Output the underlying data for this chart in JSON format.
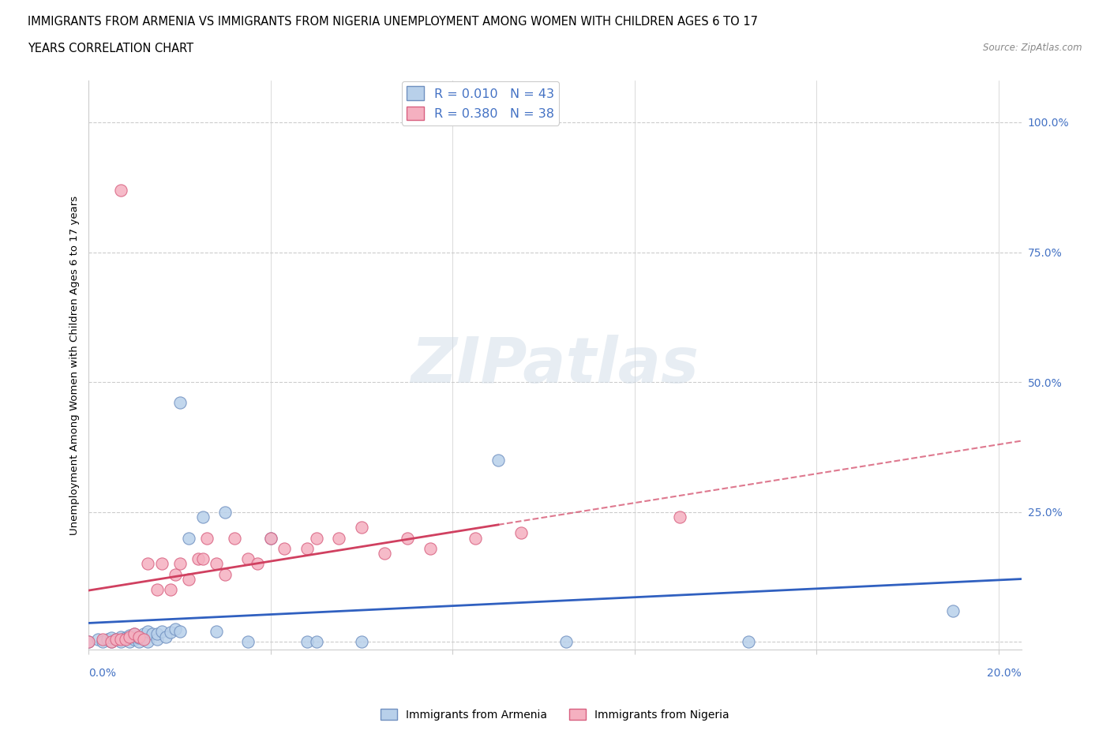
{
  "title_line1": "IMMIGRANTS FROM ARMENIA VS IMMIGRANTS FROM NIGERIA UNEMPLOYMENT AMONG WOMEN WITH CHILDREN AGES 6 TO 17",
  "title_line2": "YEARS CORRELATION CHART",
  "source": "Source: ZipAtlas.com",
  "ylabel": "Unemployment Among Women with Children Ages 6 to 17 years",
  "xlim": [
    0.0,
    0.205
  ],
  "ylim_min": -0.015,
  "ylim_max": 1.08,
  "yticks": [
    0.0,
    0.25,
    0.5,
    0.75,
    1.0
  ],
  "ytick_labels": [
    "",
    "25.0%",
    "50.0%",
    "75.0%",
    "100.0%"
  ],
  "legend_r_armenia": "R = 0.010",
  "legend_n_armenia": "N = 43",
  "legend_r_nigeria": "R = 0.380",
  "legend_n_nigeria": "N = 38",
  "armenia_color": "#b8d0ea",
  "nigeria_color": "#f5b0c0",
  "armenia_edge": "#7090c0",
  "nigeria_edge": "#d86080",
  "armenia_line_color": "#3060c0",
  "nigeria_line_color": "#d04060",
  "text_color_blue": "#4472c4",
  "grid_color": "#cccccc",
  "armenia_x": [
    0.0,
    0.002,
    0.003,
    0.004,
    0.005,
    0.005,
    0.006,
    0.007,
    0.007,
    0.008,
    0.009,
    0.009,
    0.01,
    0.01,
    0.01,
    0.011,
    0.011,
    0.012,
    0.012,
    0.013,
    0.013,
    0.014,
    0.015,
    0.015,
    0.016,
    0.017,
    0.018,
    0.019,
    0.02,
    0.02,
    0.022,
    0.025,
    0.028,
    0.03,
    0.035,
    0.04,
    0.048,
    0.05,
    0.06,
    0.09,
    0.105,
    0.145,
    0.19
  ],
  "armenia_y": [
    0.0,
    0.005,
    0.0,
    0.005,
    0.0,
    0.008,
    0.005,
    0.0,
    0.01,
    0.008,
    0.0,
    0.012,
    0.005,
    0.01,
    0.015,
    0.0,
    0.008,
    0.01,
    0.015,
    0.0,
    0.02,
    0.015,
    0.005,
    0.015,
    0.02,
    0.01,
    0.018,
    0.025,
    0.02,
    0.46,
    0.2,
    0.24,
    0.02,
    0.25,
    0.0,
    0.2,
    0.0,
    0.0,
    0.0,
    0.35,
    0.0,
    0.0,
    0.06
  ],
  "nigeria_x": [
    0.0,
    0.003,
    0.005,
    0.006,
    0.007,
    0.007,
    0.008,
    0.009,
    0.01,
    0.011,
    0.012,
    0.013,
    0.015,
    0.016,
    0.018,
    0.019,
    0.02,
    0.022,
    0.024,
    0.025,
    0.026,
    0.028,
    0.03,
    0.032,
    0.035,
    0.037,
    0.04,
    0.043,
    0.048,
    0.05,
    0.055,
    0.06,
    0.065,
    0.07,
    0.075,
    0.085,
    0.095,
    0.13
  ],
  "nigeria_y": [
    0.0,
    0.005,
    0.0,
    0.005,
    0.005,
    0.87,
    0.005,
    0.01,
    0.015,
    0.01,
    0.005,
    0.15,
    0.1,
    0.15,
    0.1,
    0.13,
    0.15,
    0.12,
    0.16,
    0.16,
    0.2,
    0.15,
    0.13,
    0.2,
    0.16,
    0.15,
    0.2,
    0.18,
    0.18,
    0.2,
    0.2,
    0.22,
    0.17,
    0.2,
    0.18,
    0.2,
    0.21,
    0.24
  ]
}
